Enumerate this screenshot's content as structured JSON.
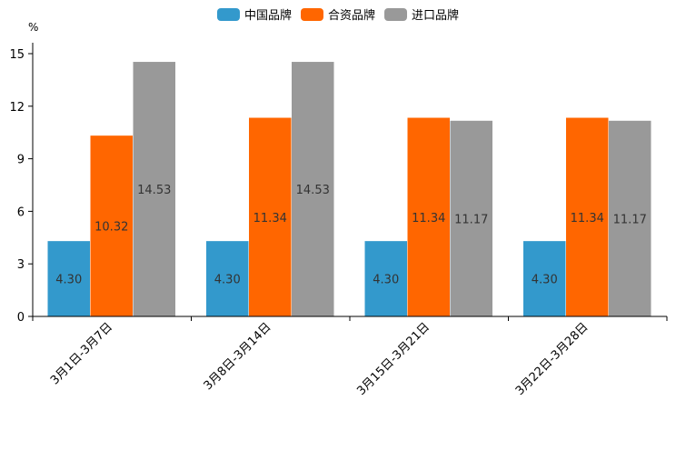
{
  "chart_data": {
    "type": "bar",
    "unit": "%",
    "categories": [
      "3月1日-3月7日",
      "3月8日-3月14日",
      "3月15日-3月21日",
      "3月22日-3月28日"
    ],
    "series": [
      {
        "name": "中国品牌",
        "color": "#3399cc",
        "values": [
          4.3,
          4.3,
          4.3,
          4.3
        ],
        "labels": [
          "4.30",
          "4.30",
          "4.30",
          "4.30"
        ]
      },
      {
        "name": "合资品牌",
        "color": "#ff6600",
        "values": [
          10.32,
          11.34,
          11.34,
          11.34
        ],
        "labels": [
          "10.32",
          "11.34",
          "11.34",
          "11.34"
        ]
      },
      {
        "name": "进口品牌",
        "color": "#999999",
        "values": [
          14.53,
          14.53,
          11.17,
          11.17
        ],
        "labels": [
          "14.53",
          "14.53",
          "11.17",
          "11.17"
        ]
      }
    ],
    "ylim": [
      0,
      15
    ],
    "yticks": [
      "0",
      "3",
      "6",
      "9",
      "12",
      "15"
    ],
    "legend_position": "top-center",
    "grid": false
  }
}
